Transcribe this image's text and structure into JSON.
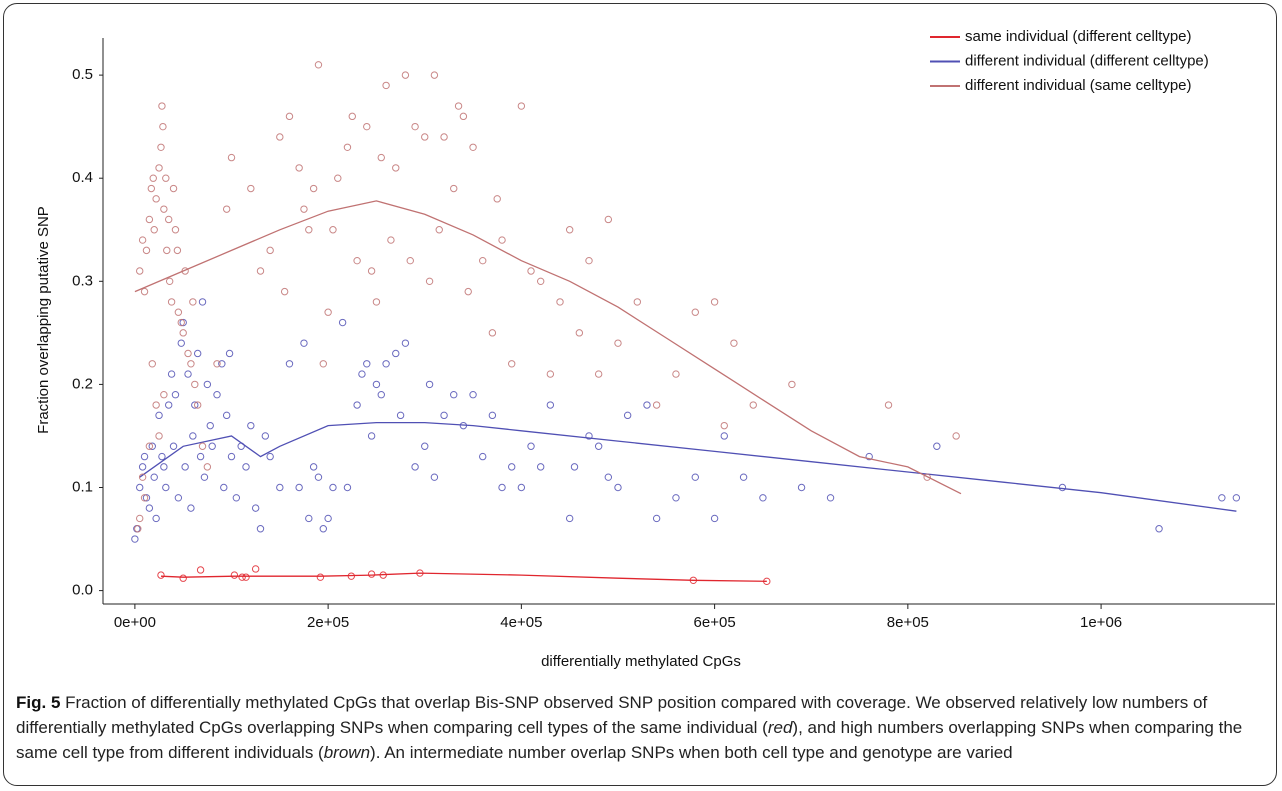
{
  "chart_data": {
    "type": "scatter",
    "xlabel": "differentially methylated CpGs",
    "ylabel": "Fraction overlapping putative SNP",
    "xlim": [
      -33000,
      1180000
    ],
    "ylim": [
      -0.013,
      0.536
    ],
    "xticks": [
      {
        "value": 0,
        "label": "0e+00"
      },
      {
        "value": 200000,
        "label": "2e+05"
      },
      {
        "value": 400000,
        "label": "4e+05"
      },
      {
        "value": 600000,
        "label": "6e+05"
      },
      {
        "value": 800000,
        "label": "8e+05"
      },
      {
        "value": 1000000,
        "label": "1e+06"
      }
    ],
    "yticks": [
      {
        "value": 0,
        "label": "0.0"
      },
      0.1,
      0.2,
      0.3,
      0.4,
      0.5
    ],
    "grid": false,
    "legend": "top-right",
    "series": [
      {
        "name": "same individual (different celltype)",
        "color": "#e0262e",
        "x": [
          27000,
          50000,
          68000,
          103000,
          111000,
          115000,
          125000,
          192000,
          224000,
          245000,
          257000,
          295000,
          578000,
          654000
        ],
        "values": [
          0.015,
          0.012,
          0.02,
          0.015,
          0.013,
          0.013,
          0.021,
          0.013,
          0.014,
          0.016,
          0.015,
          0.017,
          0.01,
          0.009
        ],
        "trend": {
          "x": [
            27000,
            50000,
            103000,
            125000,
            192000,
            245000,
            295000,
            400000,
            500000,
            578000,
            654000
          ],
          "values": [
            0.014,
            0.013,
            0.014,
            0.014,
            0.014,
            0.015,
            0.017,
            0.015,
            0.012,
            0.01,
            0.009
          ]
        }
      },
      {
        "name": "different individual (different celltype)",
        "color": "#5050b4",
        "x": [
          0,
          2000,
          5000,
          8000,
          10000,
          12000,
          15000,
          18000,
          20000,
          22000,
          25000,
          28000,
          30000,
          32000,
          35000,
          38000,
          40000,
          42000,
          45000,
          48000,
          50000,
          52000,
          55000,
          58000,
          60000,
          62000,
          65000,
          68000,
          70000,
          72000,
          75000,
          78000,
          80000,
          85000,
          90000,
          92000,
          95000,
          98000,
          100000,
          105000,
          110000,
          115000,
          120000,
          125000,
          130000,
          135000,
          140000,
          150000,
          160000,
          170000,
          175000,
          180000,
          185000,
          190000,
          195000,
          200000,
          205000,
          215000,
          220000,
          230000,
          235000,
          240000,
          245000,
          250000,
          255000,
          260000,
          270000,
          275000,
          280000,
          290000,
          300000,
          305000,
          310000,
          320000,
          330000,
          340000,
          350000,
          360000,
          370000,
          380000,
          390000,
          400000,
          410000,
          420000,
          430000,
          450000,
          455000,
          470000,
          480000,
          490000,
          500000,
          510000,
          530000,
          540000,
          560000,
          580000,
          600000,
          610000,
          630000,
          650000,
          690000,
          720000,
          760000,
          830000,
          960000,
          1060000,
          1125000,
          1140000
        ],
        "values": [
          0.05,
          0.06,
          0.1,
          0.12,
          0.13,
          0.09,
          0.08,
          0.14,
          0.11,
          0.07,
          0.17,
          0.13,
          0.12,
          0.1,
          0.18,
          0.21,
          0.14,
          0.19,
          0.09,
          0.24,
          0.26,
          0.12,
          0.21,
          0.08,
          0.15,
          0.18,
          0.23,
          0.13,
          0.28,
          0.11,
          0.2,
          0.16,
          0.14,
          0.19,
          0.22,
          0.1,
          0.17,
          0.23,
          0.13,
          0.09,
          0.14,
          0.12,
          0.16,
          0.08,
          0.06,
          0.15,
          0.13,
          0.1,
          0.22,
          0.1,
          0.24,
          0.07,
          0.12,
          0.11,
          0.06,
          0.07,
          0.1,
          0.26,
          0.1,
          0.18,
          0.21,
          0.22,
          0.15,
          0.2,
          0.19,
          0.22,
          0.23,
          0.17,
          0.24,
          0.12,
          0.14,
          0.2,
          0.11,
          0.17,
          0.19,
          0.16,
          0.19,
          0.13,
          0.17,
          0.1,
          0.12,
          0.1,
          0.14,
          0.12,
          0.18,
          0.07,
          0.12,
          0.15,
          0.14,
          0.11,
          0.1,
          0.17,
          0.18,
          0.07,
          0.09,
          0.11,
          0.07,
          0.15,
          0.11,
          0.09,
          0.1,
          0.09,
          0.13,
          0.14,
          0.1,
          0.06,
          0.09,
          0.09
        ],
        "trend": {
          "x": [
            5000,
            50000,
            100000,
            130000,
            150000,
            200000,
            250000,
            300000,
            350000,
            400000,
            500000,
            600000,
            700000,
            800000,
            900000,
            1000000,
            1140000
          ],
          "values": [
            0.11,
            0.14,
            0.15,
            0.13,
            0.14,
            0.16,
            0.163,
            0.163,
            0.16,
            0.155,
            0.145,
            0.135,
            0.125,
            0.115,
            0.105,
            0.095,
            0.077
          ]
        }
      },
      {
        "name": "different individual (same celltype)",
        "color": "#c07272",
        "x": [
          5000,
          8000,
          10000,
          12000,
          15000,
          17000,
          19000,
          20000,
          22000,
          25000,
          27000,
          28000,
          29000,
          30000,
          32000,
          33000,
          35000,
          36000,
          38000,
          40000,
          42000,
          44000,
          45000,
          48000,
          50000,
          52000,
          55000,
          58000,
          60000,
          62000,
          18000,
          22000,
          25000,
          15000,
          30000,
          8000,
          10000,
          5000,
          3000,
          65000,
          70000,
          75000,
          85000,
          95000,
          100000,
          120000,
          130000,
          140000,
          150000,
          155000,
          160000,
          170000,
          175000,
          180000,
          185000,
          190000,
          195000,
          200000,
          205000,
          210000,
          220000,
          225000,
          230000,
          240000,
          245000,
          250000,
          255000,
          260000,
          265000,
          270000,
          280000,
          285000,
          290000,
          300000,
          305000,
          310000,
          315000,
          320000,
          330000,
          335000,
          340000,
          345000,
          350000,
          360000,
          370000,
          375000,
          380000,
          390000,
          400000,
          410000,
          420000,
          430000,
          440000,
          450000,
          460000,
          470000,
          480000,
          490000,
          500000,
          520000,
          540000,
          560000,
          580000,
          600000,
          610000,
          620000,
          640000,
          680000,
          780000,
          820000,
          850000
        ],
        "values": [
          0.31,
          0.34,
          0.29,
          0.33,
          0.36,
          0.39,
          0.4,
          0.35,
          0.38,
          0.41,
          0.43,
          0.47,
          0.45,
          0.37,
          0.4,
          0.33,
          0.36,
          0.3,
          0.28,
          0.39,
          0.35,
          0.33,
          0.27,
          0.26,
          0.25,
          0.31,
          0.23,
          0.22,
          0.28,
          0.2,
          0.22,
          0.18,
          0.15,
          0.14,
          0.19,
          0.11,
          0.09,
          0.07,
          0.06,
          0.18,
          0.14,
          0.12,
          0.22,
          0.37,
          0.42,
          0.39,
          0.31,
          0.33,
          0.44,
          0.29,
          0.46,
          0.41,
          0.37,
          0.35,
          0.39,
          0.51,
          0.22,
          0.27,
          0.35,
          0.4,
          0.43,
          0.46,
          0.32,
          0.45,
          0.31,
          0.28,
          0.42,
          0.49,
          0.34,
          0.41,
          0.5,
          0.32,
          0.45,
          0.44,
          0.3,
          0.5,
          0.35,
          0.44,
          0.39,
          0.47,
          0.46,
          0.29,
          0.43,
          0.32,
          0.25,
          0.38,
          0.34,
          0.22,
          0.47,
          0.31,
          0.3,
          0.21,
          0.28,
          0.35,
          0.25,
          0.32,
          0.21,
          0.36,
          0.24,
          0.28,
          0.18,
          0.21,
          0.27,
          0.28,
          0.16,
          0.24,
          0.18,
          0.2,
          0.18,
          0.11,
          0.15
        ],
        "trend": {
          "x": [
            0,
            50000,
            100000,
            150000,
            200000,
            250000,
            300000,
            350000,
            400000,
            450000,
            500000,
            550000,
            600000,
            650000,
            700000,
            750000,
            800000,
            855000
          ],
          "values": [
            0.29,
            0.31,
            0.33,
            0.35,
            0.368,
            0.378,
            0.365,
            0.345,
            0.32,
            0.3,
            0.275,
            0.245,
            0.215,
            0.185,
            0.155,
            0.13,
            0.12,
            0.094
          ]
        }
      }
    ],
    "caption": {
      "label": "Fig. 5",
      "parts": [
        "Fraction of differentially methylated CpGs that overlap Bis-SNP observed SNP position compared with coverage. We observed relatively low numbers of differentially methylated CpGs overlapping SNPs when comparing cell types of the same individual (",
        "red",
        "), and high numbers overlapping SNPs when comparing the same cell type from different individuals (",
        "brown",
        "). An intermediate number overlap SNPs when both cell type and genotype are varied"
      ]
    }
  }
}
